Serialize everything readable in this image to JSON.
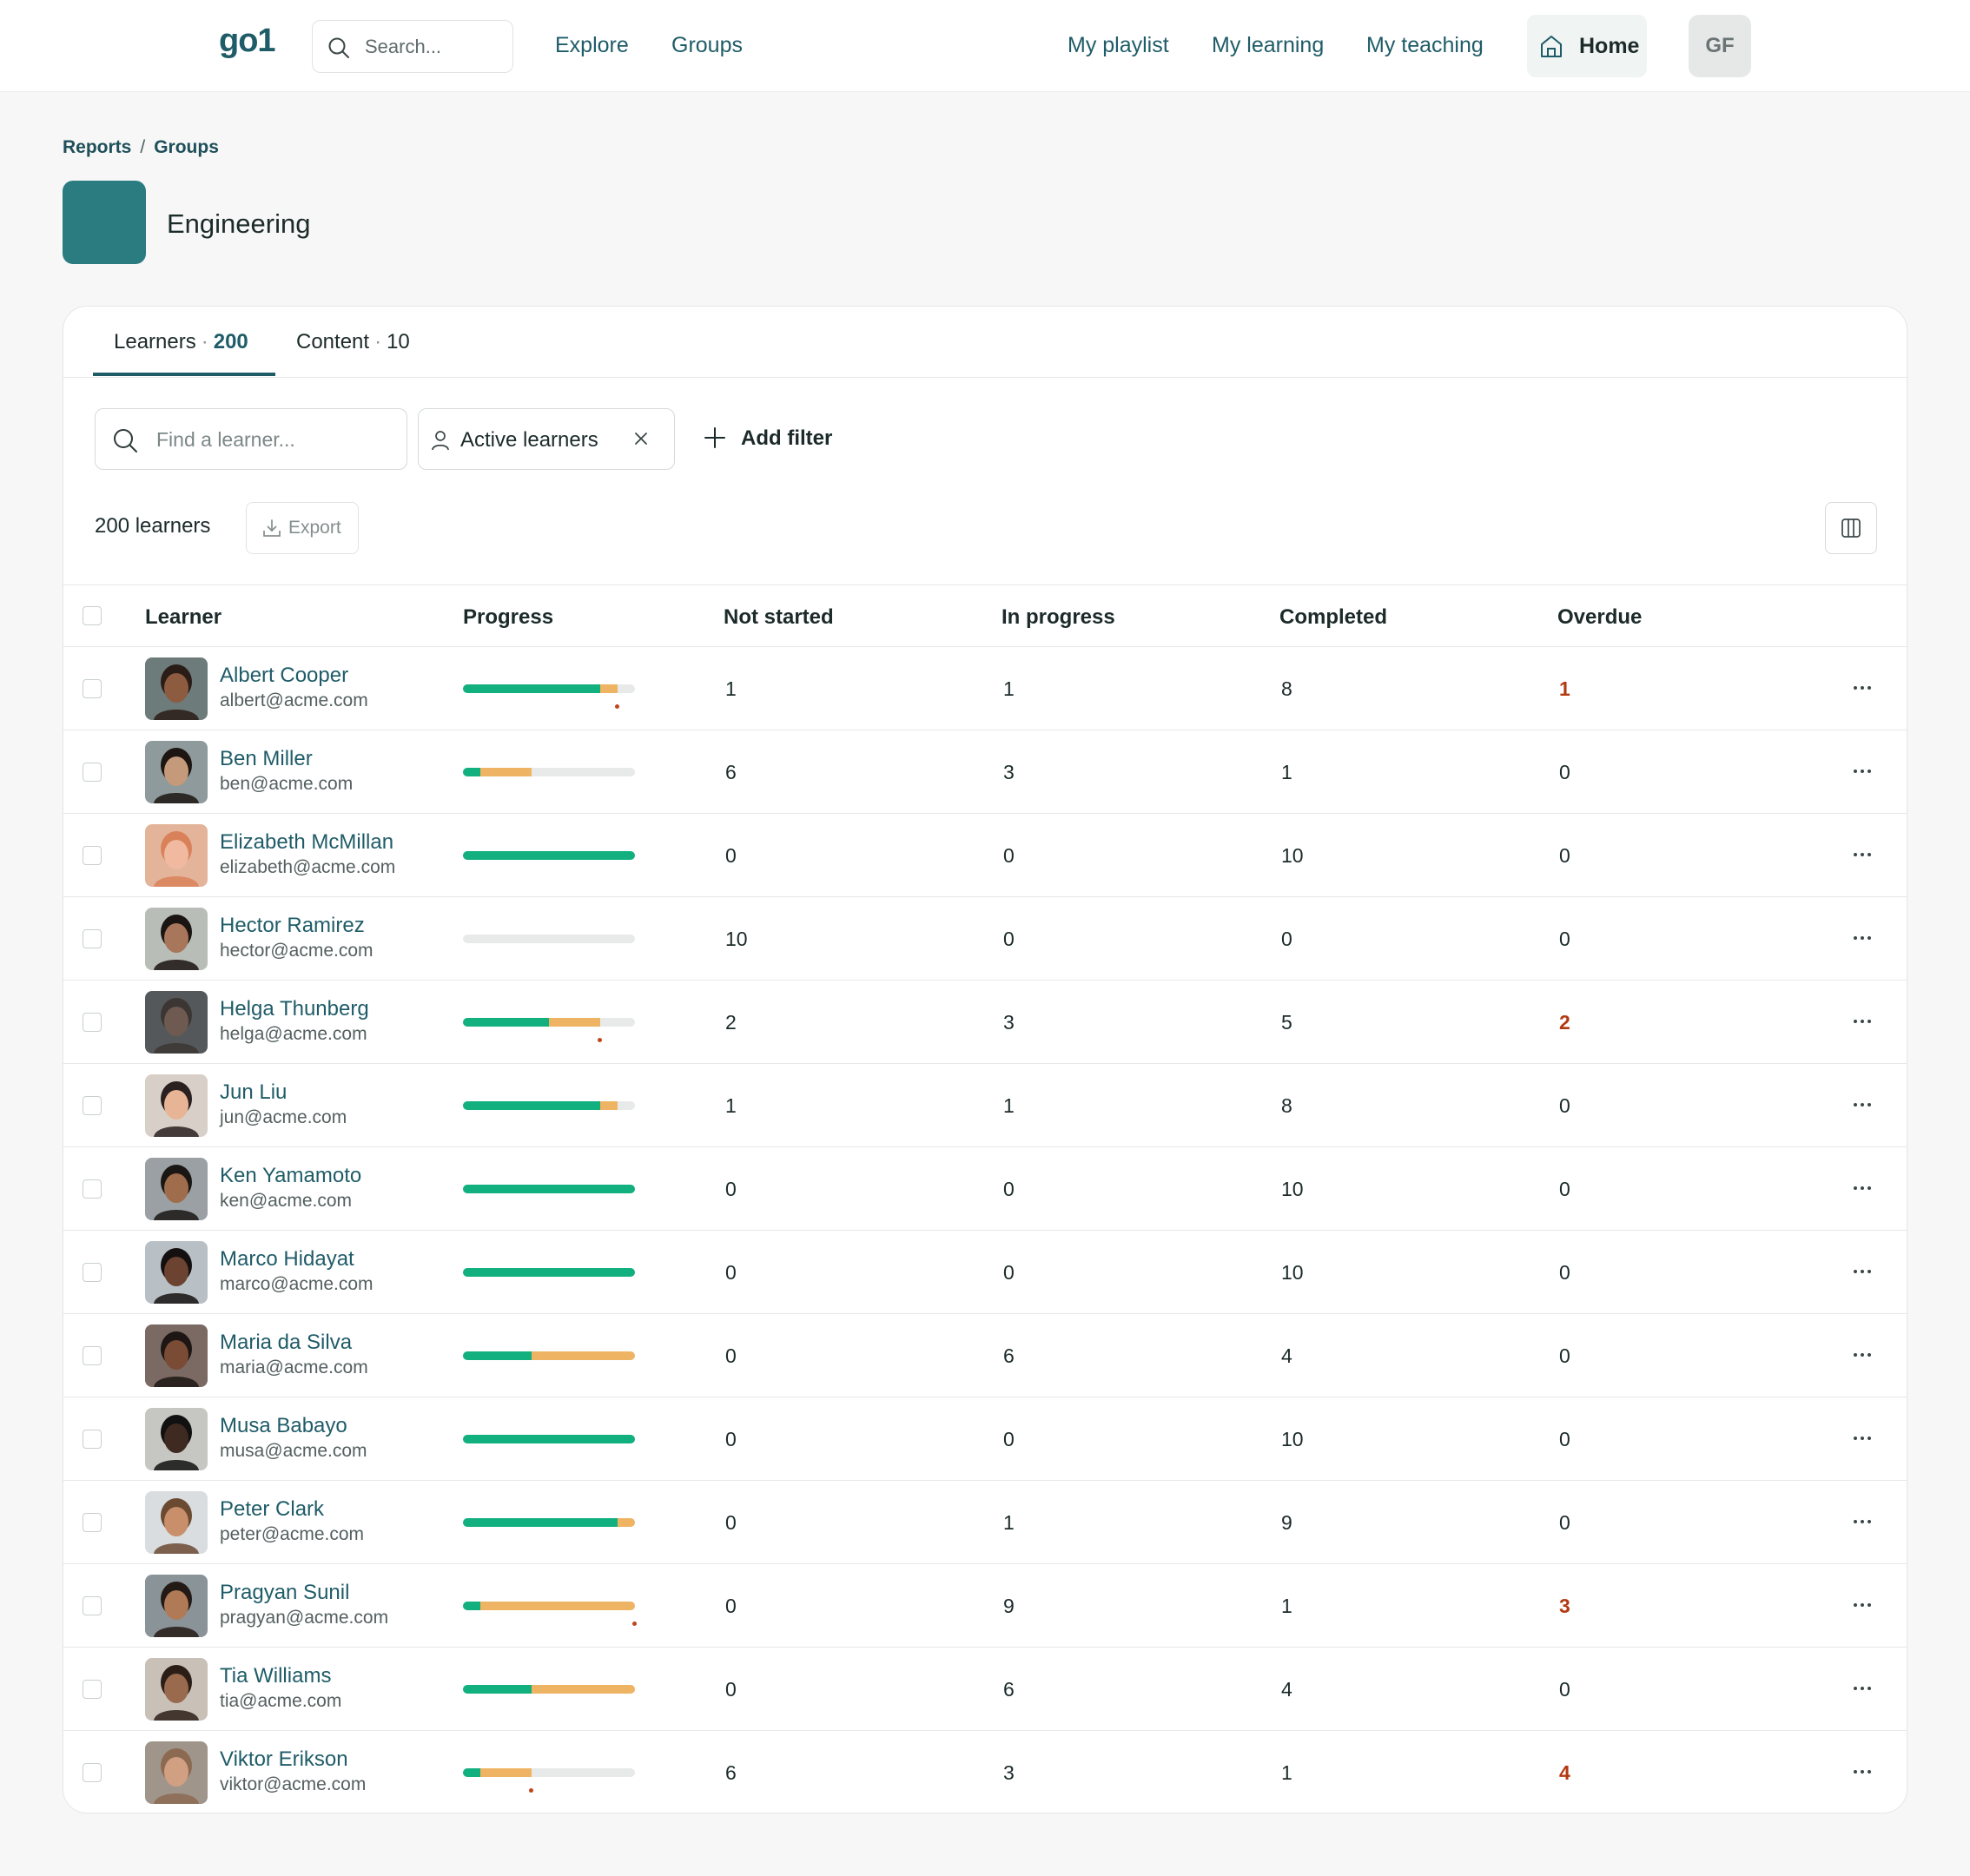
{
  "nav": {
    "logo": "go1",
    "search_placeholder": "Search...",
    "explore": "Explore",
    "groups": "Groups",
    "my_playlist": "My playlist",
    "my_learning": "My learning",
    "my_teaching": "My teaching",
    "home": "Home",
    "user_initials": "GF"
  },
  "breadcrumb": {
    "reports": "Reports",
    "separator": "/",
    "groups": "Groups"
  },
  "page": {
    "title": "Engineering",
    "group_color": "#2a7c80"
  },
  "tabs": [
    {
      "label": "Learners",
      "count": "200",
      "active": true
    },
    {
      "label": "Content",
      "count": "10",
      "active": false
    }
  ],
  "filters": {
    "find_placeholder": "Find a learner...",
    "active_chip": "Active learners",
    "add_filter": "Add filter"
  },
  "summary": {
    "count_label": "200 learners",
    "export": "Export"
  },
  "colors": {
    "completed": "#12b07f",
    "in_progress": "#eeb463",
    "overdue": "#b23a12",
    "brand": "#1f5c68"
  },
  "table": {
    "headers": [
      "Learner",
      "Progress",
      "Not started",
      "In progress",
      "Completed",
      "Overdue"
    ],
    "rows": [
      {
        "name": "Albert Cooper",
        "email": "albert@acme.com",
        "not_started": "1",
        "in_progress": "1",
        "completed": "8",
        "overdue": "1"
      },
      {
        "name": "Ben Miller",
        "email": "ben@acme.com",
        "not_started": "6",
        "in_progress": "3",
        "completed": "1",
        "overdue": "0"
      },
      {
        "name": "Elizabeth McMillan",
        "email": "elizabeth@acme.com",
        "not_started": "0",
        "in_progress": "0",
        "completed": "10",
        "overdue": "0"
      },
      {
        "name": "Hector Ramirez",
        "email": "hector@acme.com",
        "not_started": "10",
        "in_progress": "0",
        "completed": "0",
        "overdue": "0"
      },
      {
        "name": "Helga Thunberg",
        "email": "helga@acme.com",
        "not_started": "2",
        "in_progress": "3",
        "completed": "5",
        "overdue": "2"
      },
      {
        "name": "Jun Liu",
        "email": "jun@acme.com",
        "not_started": "1",
        "in_progress": "1",
        "completed": "8",
        "overdue": "0"
      },
      {
        "name": "Ken Yamamoto",
        "email": "ken@acme.com",
        "not_started": "0",
        "in_progress": "0",
        "completed": "10",
        "overdue": "0"
      },
      {
        "name": "Marco Hidayat",
        "email": "marco@acme.com",
        "not_started": "0",
        "in_progress": "0",
        "completed": "10",
        "overdue": "0"
      },
      {
        "name": "Maria da Silva",
        "email": "maria@acme.com",
        "not_started": "0",
        "in_progress": "6",
        "completed": "4",
        "overdue": "0"
      },
      {
        "name": "Musa Babayo",
        "email": "musa@acme.com",
        "not_started": "0",
        "in_progress": "0",
        "completed": "10",
        "overdue": "0"
      },
      {
        "name": "Peter Clark",
        "email": "peter@acme.com",
        "not_started": "0",
        "in_progress": "1",
        "completed": "9",
        "overdue": "0"
      },
      {
        "name": "Pragyan Sunil",
        "email": "pragyan@acme.com",
        "not_started": "0",
        "in_progress": "9",
        "completed": "1",
        "overdue": "3"
      },
      {
        "name": "Tia Williams",
        "email": "tia@acme.com",
        "not_started": "0",
        "in_progress": "6",
        "completed": "4",
        "overdue": "0"
      },
      {
        "name": "Viktor Erikson",
        "email": "viktor@acme.com",
        "not_started": "6",
        "in_progress": "3",
        "completed": "1",
        "overdue": "4"
      }
    ]
  }
}
